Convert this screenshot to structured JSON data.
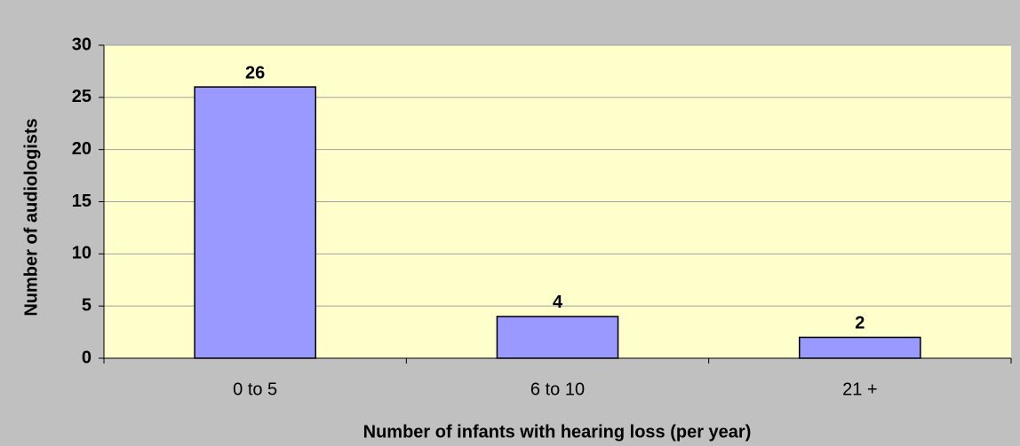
{
  "chart_data": {
    "type": "bar",
    "categories": [
      "0 to 5",
      "6 to 10",
      "21 +"
    ],
    "values": [
      26,
      4,
      2
    ],
    "color": "#9999ff",
    "x_label": "Number of infants with hearing loss (per year)",
    "y_label": "Number of audiologists",
    "ylim": [
      0,
      30
    ],
    "yticks": [
      0,
      5,
      10,
      15,
      20,
      25,
      30
    ],
    "grid": true
  }
}
